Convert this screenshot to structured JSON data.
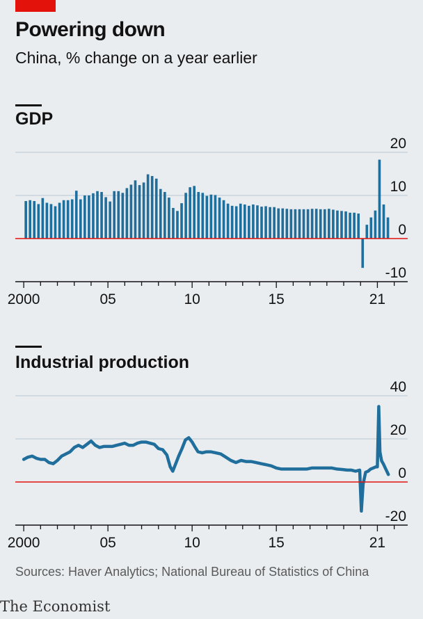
{
  "header": {
    "title": "Powering down",
    "subtitle": "China, % change on a year earlier"
  },
  "footer": {
    "source": "Sources: Haver Analytics; National Bureau of Statistics of China",
    "logo": "The Economist"
  },
  "colors": {
    "accent": "#e3120b",
    "series": "#1f6e9c",
    "zero_line": "#e3120b",
    "grid": "#b7c6cf",
    "background": "#e9edf0"
  },
  "chart_data": [
    {
      "type": "bar",
      "title": "GDP",
      "x_tick_labels": [
        "2000",
        "05",
        "10",
        "15",
        "21"
      ],
      "x_ticks": [
        2000,
        2001,
        2002,
        2003,
        2004,
        2005,
        2006,
        2007,
        2008,
        2009,
        2010,
        2011,
        2012,
        2013,
        2014,
        2015,
        2016,
        2017,
        2018,
        2019,
        2020,
        2021,
        2022
      ],
      "x_tick_label_years": [
        2000,
        2005,
        2010,
        2015,
        2021
      ],
      "y_ticks": [
        20,
        10,
        0,
        -10
      ],
      "ylim": [
        -10,
        20
      ],
      "xlim": [
        1999.5,
        2022.8
      ],
      "grid": true,
      "quarters": [
        "2000Q1",
        "2000Q2",
        "2000Q3",
        "2000Q4",
        "2001Q1",
        "2001Q2",
        "2001Q3",
        "2001Q4",
        "2002Q1",
        "2002Q2",
        "2002Q3",
        "2002Q4",
        "2003Q1",
        "2003Q2",
        "2003Q3",
        "2003Q4",
        "2004Q1",
        "2004Q2",
        "2004Q3",
        "2004Q4",
        "2005Q1",
        "2005Q2",
        "2005Q3",
        "2005Q4",
        "2006Q1",
        "2006Q2",
        "2006Q3",
        "2006Q4",
        "2007Q1",
        "2007Q2",
        "2007Q3",
        "2007Q4",
        "2008Q1",
        "2008Q2",
        "2008Q3",
        "2008Q4",
        "2009Q1",
        "2009Q2",
        "2009Q3",
        "2009Q4",
        "2010Q1",
        "2010Q2",
        "2010Q3",
        "2010Q4",
        "2011Q1",
        "2011Q2",
        "2011Q3",
        "2011Q4",
        "2012Q1",
        "2012Q2",
        "2012Q3",
        "2012Q4",
        "2013Q1",
        "2013Q2",
        "2013Q3",
        "2013Q4",
        "2014Q1",
        "2014Q2",
        "2014Q3",
        "2014Q4",
        "2015Q1",
        "2015Q2",
        "2015Q3",
        "2015Q4",
        "2016Q1",
        "2016Q2",
        "2016Q3",
        "2016Q4",
        "2017Q1",
        "2017Q2",
        "2017Q3",
        "2017Q4",
        "2018Q1",
        "2018Q2",
        "2018Q3",
        "2018Q4",
        "2019Q1",
        "2019Q2",
        "2019Q3",
        "2019Q4",
        "2020Q1",
        "2020Q2",
        "2020Q3",
        "2020Q4",
        "2021Q1",
        "2021Q2",
        "2021Q3"
      ],
      "values": [
        8.7,
        8.9,
        8.7,
        8.0,
        9.4,
        8.3,
        8.0,
        7.5,
        8.3,
        8.9,
        8.9,
        9.1,
        11.1,
        9.1,
        10.0,
        10.0,
        10.5,
        11.0,
        10.8,
        9.6,
        8.6,
        11.0,
        11.0,
        10.6,
        11.7,
        12.5,
        13.5,
        12.4,
        13.0,
        14.9,
        14.5,
        13.9,
        11.5,
        10.8,
        9.5,
        7.1,
        6.4,
        8.2,
        10.6,
        11.9,
        12.2,
        10.8,
        10.6,
        9.9,
        10.2,
        10.1,
        9.5,
        8.9,
        8.1,
        7.6,
        7.5,
        8.1,
        7.9,
        7.6,
        7.9,
        7.7,
        7.4,
        7.5,
        7.3,
        7.3,
        7.0,
        7.0,
        6.9,
        6.8,
        6.8,
        6.8,
        6.8,
        6.8,
        6.9,
        6.9,
        6.8,
        6.8,
        6.9,
        6.7,
        6.5,
        6.4,
        6.3,
        6.0,
        6.0,
        5.8,
        -6.8,
        3.2,
        4.9,
        6.5,
        18.3,
        7.9,
        4.9
      ]
    },
    {
      "type": "line",
      "title": "Industrial production",
      "x_tick_labels": [
        "2000",
        "05",
        "10",
        "15",
        "21"
      ],
      "x_ticks": [
        2000,
        2001,
        2002,
        2003,
        2004,
        2005,
        2006,
        2007,
        2008,
        2009,
        2010,
        2011,
        2012,
        2013,
        2014,
        2015,
        2016,
        2017,
        2018,
        2019,
        2020,
        2021,
        2022
      ],
      "x_tick_label_years": [
        2000,
        2005,
        2010,
        2015,
        2021
      ],
      "y_ticks": [
        40,
        20,
        0,
        -20
      ],
      "ylim": [
        -20,
        40
      ],
      "xlim": [
        1999.5,
        2022.8
      ],
      "grid": true,
      "x": [
        2000.0,
        2000.25,
        2000.5,
        2000.75,
        2001.0,
        2001.25,
        2001.5,
        2001.75,
        2002.0,
        2002.25,
        2002.5,
        2002.75,
        2003.0,
        2003.25,
        2003.5,
        2003.75,
        2004.0,
        2004.25,
        2004.5,
        2004.75,
        2005.0,
        2005.25,
        2005.5,
        2005.75,
        2006.0,
        2006.25,
        2006.5,
        2006.75,
        2007.0,
        2007.25,
        2007.5,
        2007.75,
        2008.0,
        2008.25,
        2008.5,
        2008.7,
        2008.85,
        2009.0,
        2009.2,
        2009.4,
        2009.6,
        2009.8,
        2010.0,
        2010.15,
        2010.35,
        2010.6,
        2010.85,
        2011.1,
        2011.4,
        2011.7,
        2012.0,
        2012.3,
        2012.6,
        2012.9,
        2013.2,
        2013.5,
        2013.8,
        2014.1,
        2014.4,
        2014.7,
        2015.0,
        2015.3,
        2015.6,
        2015.9,
        2016.2,
        2016.5,
        2016.8,
        2017.1,
        2017.4,
        2017.7,
        2018.0,
        2018.3,
        2018.6,
        2018.9,
        2019.2,
        2019.45,
        2019.7,
        2019.95,
        2020.05,
        2020.15,
        2020.3,
        2020.45,
        2020.6,
        2020.75,
        2020.9,
        2021.0,
        2021.08,
        2021.15,
        2021.25,
        2021.35,
        2021.5,
        2021.65
      ],
      "values": [
        10.5,
        11.5,
        12.0,
        11.0,
        10.5,
        10.5,
        9.0,
        8.5,
        10.0,
        12.0,
        13.0,
        14.0,
        16.0,
        17.0,
        16.0,
        17.5,
        19.0,
        17.0,
        16.0,
        16.5,
        16.5,
        16.5,
        17.0,
        17.5,
        18.0,
        17.0,
        17.0,
        18.0,
        18.5,
        18.5,
        18.0,
        17.5,
        15.5,
        15.0,
        12.5,
        7.0,
        5.0,
        8.0,
        12.0,
        15.5,
        19.5,
        20.5,
        18.5,
        16.5,
        14.0,
        13.5,
        14.0,
        14.0,
        13.5,
        13.0,
        11.5,
        10.0,
        9.0,
        10.0,
        9.5,
        9.5,
        9.0,
        8.5,
        8.0,
        7.5,
        6.5,
        6.0,
        6.0,
        6.0,
        6.0,
        6.0,
        6.0,
        6.5,
        6.5,
        6.5,
        6.5,
        6.5,
        6.0,
        5.8,
        5.5,
        5.5,
        5.0,
        5.5,
        -13.5,
        -1.0,
        4.5,
        5.0,
        6.0,
        6.5,
        7.0,
        7.0,
        35.0,
        14.0,
        9.8,
        8.5,
        6.0,
        3.5
      ]
    }
  ]
}
